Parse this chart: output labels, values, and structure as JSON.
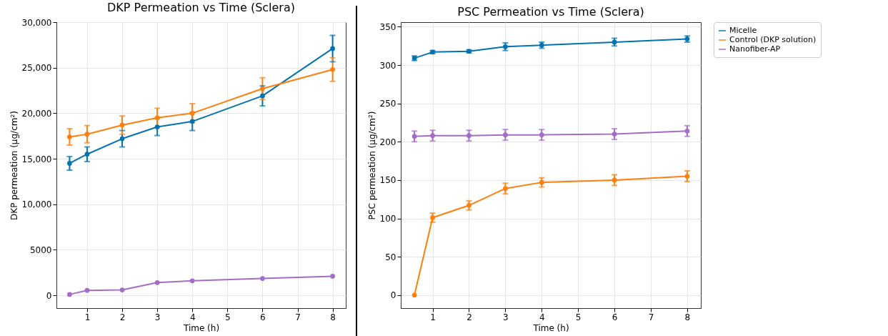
{
  "chart_data": [
    {
      "type": "line",
      "title": "DKP Permeation vs Time (Sclera)",
      "xlabel": "Time (h)",
      "ylabel": "DKP permeation (µg/cm²)",
      "x": [
        0.5,
        1,
        2,
        3,
        4,
        6,
        8
      ],
      "series": [
        {
          "color": "#0173b2",
          "values": [
            14500,
            15500,
            17200,
            18500,
            19100,
            21900,
            27100
          ],
          "errors": [
            750,
            800,
            900,
            950,
            1000,
            1100,
            1450
          ]
        },
        {
          "color": "#ff7f0e",
          "values": [
            17400,
            17700,
            18700,
            19500,
            20000,
            22700,
            24800
          ],
          "errors": [
            900,
            950,
            1000,
            1050,
            1050,
            1200,
            1300
          ]
        },
        {
          "color": "#a46cc9",
          "values": [
            100,
            550,
            600,
            1400,
            1600,
            1850,
            2100
          ]
        }
      ],
      "xlim": [
        0.125,
        8.375
      ],
      "xticks": [
        1,
        2,
        3,
        4,
        5,
        6,
        7,
        8
      ],
      "ylim": [
        -1400,
        30000
      ],
      "yticks": [
        0,
        {
          "value": 5000,
          "label": "5000"
        },
        {
          "value": 10000,
          "label": "10,000"
        },
        {
          "value": 15000,
          "label": "15,000"
        },
        {
          "value": 20000,
          "label": "20,000"
        },
        {
          "value": 25000,
          "label": "25,000"
        },
        {
          "value": 30000,
          "label": "30,000"
        }
      ],
      "grid": true,
      "marker": "circle",
      "line_style": "solid"
    },
    {
      "type": "line",
      "title": "PSC Permeation vs Time (Sclera)",
      "xlabel": "Time (h)",
      "ylabel": "PSC permeation (µg/cm²)",
      "x": [
        0.5,
        1,
        2,
        3,
        4,
        6,
        8
      ],
      "series": [
        {
          "name": "Micelle",
          "color": "#0173b2",
          "values": [
            309,
            317,
            318,
            324,
            326,
            330,
            334
          ],
          "errors": [
            3,
            2,
            2,
            5,
            4,
            5,
            4
          ]
        },
        {
          "name": "Control (DKP solution)",
          "color": "#ff7f0e",
          "values": [
            0,
            101,
            117,
            139,
            147,
            150,
            155
          ],
          "errors": [
            null,
            6,
            6,
            7,
            6,
            7,
            7
          ]
        },
        {
          "name": "Nanofiber-AP",
          "color": "#a46cc9",
          "values": [
            207,
            208,
            208,
            209,
            209,
            210,
            214
          ],
          "errors": [
            7,
            7,
            7,
            7,
            7,
            7,
            7
          ]
        }
      ],
      "xlim": [
        0.125,
        8.375
      ],
      "xticks": [
        1,
        2,
        3,
        4,
        5,
        6,
        7,
        8
      ],
      "ylim": [
        -17,
        356
      ],
      "yticks": [
        0,
        50,
        100,
        150,
        200,
        250,
        300,
        350
      ],
      "grid": true,
      "legend": "right",
      "marker": "circle",
      "line_style": "solid"
    }
  ]
}
